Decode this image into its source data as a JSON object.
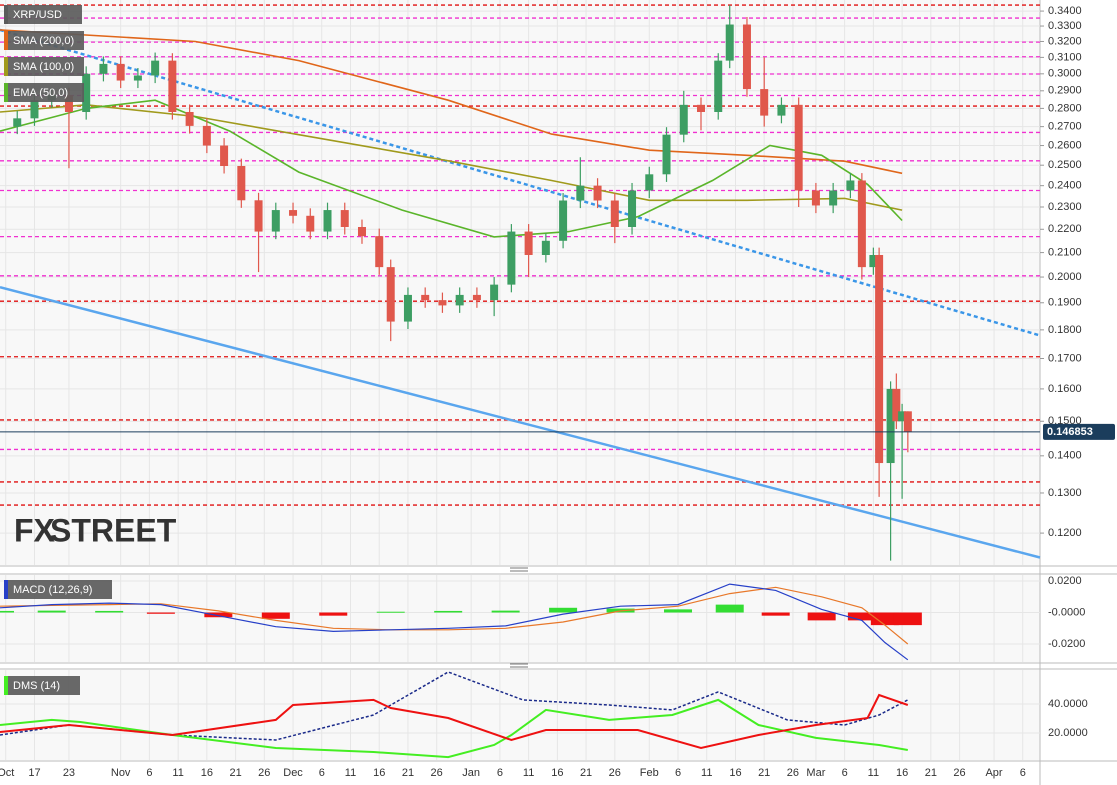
{
  "chart_data": [
    {
      "type": "candlestick",
      "title": "XRP/USD",
      "log_scale": true,
      "grid": true,
      "up_color": "#3d9e63",
      "down_color": "#e0584c",
      "xlim": [
        "Oct 11",
        "Apr 9"
      ],
      "xticks": [
        {
          "value": "Oct 12",
          "label": "Oct"
        },
        {
          "value": "Oct 17",
          "label": "17"
        },
        {
          "value": "Oct 23",
          "label": "23"
        },
        {
          "value": "Nov 1",
          "label": "Nov"
        },
        {
          "value": "Nov 6",
          "label": "6"
        },
        {
          "value": "Nov 11",
          "label": "11"
        },
        {
          "value": "Nov 16",
          "label": "16"
        },
        {
          "value": "Nov 21",
          "label": "21"
        },
        {
          "value": "Nov 26",
          "label": "26"
        },
        {
          "value": "Dec 1",
          "label": "Dec"
        },
        {
          "value": "Dec 6",
          "label": "6"
        },
        {
          "value": "Dec 11",
          "label": "11"
        },
        {
          "value": "Dec 16",
          "label": "16"
        },
        {
          "value": "Dec 21",
          "label": "21"
        },
        {
          "value": "Dec 26",
          "label": "26"
        },
        {
          "value": "Jan 1",
          "label": "Jan"
        },
        {
          "value": "Jan 6",
          "label": "6"
        },
        {
          "value": "Jan 11",
          "label": "11"
        },
        {
          "value": "Jan 16",
          "label": "16"
        },
        {
          "value": "Jan 21",
          "label": "21"
        },
        {
          "value": "Jan 26",
          "label": "26"
        },
        {
          "value": "Feb 1",
          "label": "Feb"
        },
        {
          "value": "Feb 6",
          "label": "6"
        },
        {
          "value": "Feb 11",
          "label": "11"
        },
        {
          "value": "Feb 16",
          "label": "16"
        },
        {
          "value": "Feb 21",
          "label": "21"
        },
        {
          "value": "Feb 26",
          "label": "26"
        },
        {
          "value": "Mar 1",
          "label": "Mar"
        },
        {
          "value": "Mar 6",
          "label": "6"
        },
        {
          "value": "Mar 11",
          "label": "11"
        },
        {
          "value": "Mar 16",
          "label": "16"
        },
        {
          "value": "Mar 21",
          "label": "21"
        },
        {
          "value": "Mar 26",
          "label": "26"
        },
        {
          "value": "Apr 1",
          "label": "Apr"
        },
        {
          "value": "Apr 6",
          "label": "6"
        }
      ],
      "ylim": [
        0.1126,
        0.3476
      ],
      "yticks": [
        {
          "value": 0.34,
          "label": "0.3400"
        },
        {
          "value": 0.33,
          "label": "0.3300"
        },
        {
          "value": 0.32,
          "label": "0.3200"
        },
        {
          "value": 0.31,
          "label": "0.3100"
        },
        {
          "value": 0.3,
          "label": "0.3000"
        },
        {
          "value": 0.29,
          "label": "0.2900"
        },
        {
          "value": 0.28,
          "label": "0.2800"
        },
        {
          "value": 0.27,
          "label": "0.2700"
        },
        {
          "value": 0.26,
          "label": "0.2600"
        },
        {
          "value": 0.25,
          "label": "0.2500"
        },
        {
          "value": 0.24,
          "label": "0.2400"
        },
        {
          "value": 0.23,
          "label": "0.2300"
        },
        {
          "value": 0.22,
          "label": "0.2200"
        },
        {
          "value": 0.21,
          "label": "0.2100"
        },
        {
          "value": 0.2,
          "label": "0.2000"
        },
        {
          "value": 0.19,
          "label": "0.1900"
        },
        {
          "value": 0.18,
          "label": "0.1800"
        },
        {
          "value": 0.17,
          "label": "0.1700"
        },
        {
          "value": 0.16,
          "label": "0.1600"
        },
        {
          "value": 0.15,
          "label": "0.1500"
        },
        {
          "value": 0.14,
          "label": "0.1400"
        },
        {
          "value": 0.13,
          "label": "0.1300"
        },
        {
          "value": 0.12,
          "label": "0.1200"
        }
      ],
      "x": [
        "Oct 14",
        "Oct 17",
        "Oct 20",
        "Oct 23",
        "Oct 26",
        "Oct 29",
        "Nov 1",
        "Nov 4",
        "Nov 7",
        "Nov 10",
        "Nov 13",
        "Nov 16",
        "Nov 19",
        "Nov 22",
        "Nov 25",
        "Nov 28",
        "Dec 1",
        "Dec 4",
        "Dec 7",
        "Dec 10",
        "Dec 13",
        "Dec 16",
        "Dec 18",
        "Dec 21",
        "Dec 24",
        "Dec 27",
        "Dec 30",
        "Jan 2",
        "Jan 5",
        "Jan 8",
        "Jan 11",
        "Jan 14",
        "Jan 17",
        "Jan 20",
        "Jan 23",
        "Jan 26",
        "Jan 29",
        "Feb 1",
        "Feb 4",
        "Feb 7",
        "Feb 10",
        "Feb 13",
        "Feb 15",
        "Feb 18",
        "Feb 21",
        "Feb 24",
        "Feb 27",
        "Mar 1",
        "Mar 4",
        "Mar 7",
        "Mar 9",
        "Mar 11",
        "Mar 12",
        "Mar 14",
        "Mar 15",
        "Mar 16",
        "Mar 17"
      ],
      "open": [
        0.27,
        0.2745,
        0.2846,
        0.2875,
        0.278,
        0.3,
        0.306,
        0.296,
        0.299,
        0.308,
        0.278,
        0.2704,
        0.26,
        0.2496,
        0.2331,
        0.219,
        0.2286,
        0.226,
        0.219,
        0.2286,
        0.221,
        0.217,
        0.204,
        0.183,
        0.193,
        0.191,
        0.189,
        0.193,
        0.191,
        0.197,
        0.219,
        0.209,
        0.215,
        0.233,
        0.24,
        0.233,
        0.221,
        0.2377,
        0.2455,
        0.2657,
        0.282,
        0.278,
        0.308,
        0.331,
        0.291,
        0.276,
        0.282,
        0.2377,
        0.2307,
        0.2377,
        0.2425,
        0.204,
        0.209,
        0.138,
        0.16,
        0.15,
        0.153
      ],
      "high": [
        0.2786,
        0.2889,
        0.2918,
        0.2918,
        0.3045,
        0.3106,
        0.3106,
        0.3035,
        0.313,
        0.3126,
        0.2822,
        0.2745,
        0.2639,
        0.2533,
        0.2366,
        0.232,
        0.232,
        0.2294,
        0.232,
        0.232,
        0.2243,
        0.2203,
        0.2071,
        0.1959,
        0.1959,
        0.1939,
        0.1959,
        0.1959,
        0.2,
        0.2223,
        0.2223,
        0.2182,
        0.2365,
        0.254,
        0.2436,
        0.2365,
        0.2413,
        0.2492,
        0.2697,
        0.29,
        0.2862,
        0.3126,
        0.344,
        0.336,
        0.31,
        0.2862,
        0.2862,
        0.2413,
        0.2413,
        0.2461,
        0.2461,
        0.2121,
        0.2121,
        0.1624,
        0.165,
        0.1553,
        0.153
      ],
      "low": [
        0.266,
        0.2704,
        0.2803,
        0.2485,
        0.2738,
        0.2955,
        0.2916,
        0.2916,
        0.2945,
        0.2738,
        0.2663,
        0.2561,
        0.2459,
        0.2296,
        0.202,
        0.2157,
        0.2226,
        0.2157,
        0.2157,
        0.2177,
        0.2137,
        0.2009,
        0.176,
        0.1803,
        0.1881,
        0.1862,
        0.1862,
        0.1881,
        0.185,
        0.194,
        0.2,
        0.2059,
        0.2118,
        0.2295,
        0.2295,
        0.214,
        0.2177,
        0.2341,
        0.2418,
        0.2617,
        0.268,
        0.2738,
        0.3034,
        0.2866,
        0.27,
        0.2718,
        0.23,
        0.2272,
        0.2272,
        0.2341,
        0.199,
        0.2009,
        0.129,
        0.1136,
        0.1477,
        0.1285,
        0.141
      ],
      "close": [
        0.2745,
        0.2846,
        0.2875,
        0.278,
        0.3,
        0.306,
        0.296,
        0.299,
        0.308,
        0.278,
        0.2704,
        0.26,
        0.2496,
        0.2331,
        0.219,
        0.2286,
        0.226,
        0.219,
        0.2286,
        0.221,
        0.217,
        0.204,
        0.183,
        0.193,
        0.191,
        0.189,
        0.193,
        0.191,
        0.197,
        0.219,
        0.209,
        0.215,
        0.233,
        0.24,
        0.233,
        0.221,
        0.2377,
        0.2455,
        0.2657,
        0.282,
        0.278,
        0.308,
        0.331,
        0.291,
        0.276,
        0.282,
        0.2377,
        0.2307,
        0.2377,
        0.2425,
        0.204,
        0.209,
        0.138,
        0.16,
        0.15,
        0.153,
        0.1469
      ],
      "overlays": [
        {
          "name": "SMA (200,0)",
          "color": "#e0661a",
          "x": [
            "Oct 11",
            "Nov 14",
            "Dec 2",
            "Dec 28",
            "Jan 15",
            "Feb 1",
            "Feb 18",
            "Mar 6",
            "Mar 16"
          ],
          "values": [
            0.3275,
            0.32,
            0.308,
            0.2846,
            0.266,
            0.2576,
            0.255,
            0.252,
            0.246
          ]
        },
        {
          "name": "SMA (100,0)",
          "color": "#a09a1c",
          "x": [
            "Oct 11",
            "Oct 26",
            "Nov 14",
            "Dec 2",
            "Dec 28",
            "Jan 15",
            "Feb 1",
            "Feb 18",
            "Mar 6",
            "Mar 16"
          ],
          "values": [
            0.278,
            0.282,
            0.2755,
            0.2657,
            0.2522,
            0.2425,
            0.2331,
            0.2331,
            0.234,
            0.2286
          ]
        },
        {
          "name": "EMA (50,0)",
          "color": "#5ab52a",
          "x": [
            "Oct 11",
            "Oct 26",
            "Nov 7",
            "Nov 20",
            "Dec 2",
            "Dec 20",
            "Jan 5",
            "Jan 18",
            "Jan 30",
            "Feb 12",
            "Feb 22",
            "Mar 2",
            "Mar 10",
            "Mar 16"
          ],
          "values": [
            0.2676,
            0.28,
            0.2846,
            0.2676,
            0.2466,
            0.2286,
            0.2167,
            0.219,
            0.2256,
            0.2425,
            0.26,
            0.255,
            0.2406,
            0.2239
          ]
        }
      ],
      "trendlines": [
        {
          "color": "#3a96e8",
          "dashed": true,
          "x": [
            "Oct 11",
            "Apr 9"
          ],
          "values": [
            0.3275,
            0.178
          ]
        },
        {
          "color": "#5aa6ee",
          "dashed": false,
          "x": [
            "Oct 11",
            "Apr 9"
          ],
          "values": [
            0.196,
            0.1143
          ]
        }
      ],
      "levels": [
        {
          "value": 0.3441,
          "color": "#e01010"
        },
        {
          "value": 0.3353,
          "color": "#f030d0"
        },
        {
          "value": 0.3196,
          "color": "#f030d0"
        },
        {
          "value": 0.3104,
          "color": "#f030d0"
        },
        {
          "value": 0.2999,
          "color": "#f030d0"
        },
        {
          "value": 0.2873,
          "color": "#f030d0"
        },
        {
          "value": 0.2813,
          "color": "#e01010"
        },
        {
          "value": 0.2669,
          "color": "#f030d0"
        },
        {
          "value": 0.2522,
          "color": "#f030d0"
        },
        {
          "value": 0.2377,
          "color": "#f030d0"
        },
        {
          "value": 0.2168,
          "color": "#f030d0"
        },
        {
          "value": 0.2005,
          "color": "#f030d0"
        },
        {
          "value": 0.1906,
          "color": "#e01010"
        },
        {
          "value": 0.1706,
          "color": "#e01010"
        },
        {
          "value": 0.1504,
          "color": "#e01010"
        },
        {
          "value": 0.1418,
          "color": "#f030d0"
        },
        {
          "value": 0.1329,
          "color": "#e01010"
        },
        {
          "value": 0.1269,
          "color": "#e01010"
        }
      ],
      "last_price": 0.146853,
      "last_price_color": "#1b3d5c",
      "watermark": [
        "FX",
        "STREET"
      ]
    },
    {
      "type": "macd",
      "title": "MACD (12,26,9)",
      "ylim": [
        -0.0314,
        0.0238
      ],
      "yticks": [
        {
          "value": 0.02,
          "label": "0.0200"
        },
        {
          "value": 0,
          "label": "-0.0000"
        },
        {
          "value": -0.02,
          "label": "-0.0200"
        }
      ],
      "x": [
        "Oct 11",
        "Oct 20",
        "Oct 30",
        "Nov 8",
        "Nov 18",
        "Nov 28",
        "Dec 8",
        "Dec 18",
        "Dec 28",
        "Jan 7",
        "Jan 17",
        "Jan 27",
        "Feb 6",
        "Feb 15",
        "Feb 23",
        "Mar 2",
        "Mar 9",
        "Mar 13",
        "Mar 17"
      ],
      "macd": {
        "color": "#2740c8",
        "values": [
          0.003,
          0.005,
          0.006,
          0.005,
          -0.002,
          -0.009,
          -0.012,
          -0.011,
          -0.01,
          -0.0085,
          -0.001,
          0.004,
          0.005,
          0.018,
          0.014,
          0.002,
          -0.005,
          -0.019,
          -0.03
        ]
      },
      "signal": {
        "color": "#e8782a",
        "values": [
          0.004,
          0.0045,
          0.005,
          0.0055,
          0.001,
          -0.005,
          -0.01,
          -0.011,
          -0.011,
          -0.01,
          -0.006,
          0.001,
          0.004,
          0.012,
          0.016,
          0.01,
          0.003,
          -0.008,
          -0.02
        ]
      },
      "histogram": {
        "up_color": "#33dd33",
        "down_color": "#ee1111",
        "values": [
          0.001,
          0.0012,
          0.001,
          -0.0008,
          -0.003,
          -0.004,
          -0.002,
          0.0005,
          0.001,
          0.0012,
          0.003,
          0.0025,
          0.002,
          0.005,
          -0.002,
          -0.005,
          -0.005,
          -0.008,
          -0.008
        ]
      }
    },
    {
      "type": "line",
      "title": "DMS (14)",
      "ylim": [
        1.4,
        63.4
      ],
      "yticks": [
        {
          "value": 40,
          "label": "40.0000"
        },
        {
          "value": 20,
          "label": "20.0000"
        }
      ],
      "series": [
        {
          "color": "#1a2a8a",
          "dashed": true,
          "x": [
            "Oct 11",
            "Oct 23",
            "Nov 10",
            "Nov 28",
            "Dec 15",
            "Dec 28",
            "Jan 10",
            "Jan 25",
            "Feb 5",
            "Feb 13",
            "Feb 25",
            "Mar 6",
            "Mar 12",
            "Mar 17"
          ],
          "values": [
            18.6,
            25.5,
            18.6,
            15.2,
            32.4,
            62.0,
            42.8,
            39.3,
            35.9,
            48.3,
            29.0,
            25.5,
            32.4,
            42.8
          ]
        },
        {
          "color": "#44ee22",
          "dashed": false,
          "x": [
            "Oct 11",
            "Oct 20",
            "Oct 25",
            "Nov 10",
            "Nov 28",
            "Dec 15",
            "Dec 28",
            "Jan 5",
            "Jan 8",
            "Jan 14",
            "Jan 25",
            "Feb 5",
            "Feb 13",
            "Feb 20",
            "Mar 1",
            "Mar 12",
            "Mar 17"
          ],
          "values": [
            25.5,
            29.0,
            27.6,
            18.6,
            9.7,
            6.9,
            3.4,
            11.7,
            18.6,
            35.9,
            29.0,
            32.4,
            42.8,
            25.5,
            16.6,
            11.7,
            8.3
          ]
        },
        {
          "color": "#ee1111",
          "dashed": false,
          "x": [
            "Oct 11",
            "Oct 23",
            "Nov 10",
            "Nov 28",
            "Dec 1",
            "Dec 15",
            "Dec 18",
            "Dec 28",
            "Jan 8",
            "Jan 14",
            "Jan 30",
            "Feb 10",
            "Feb 20",
            "Mar 1",
            "Mar 10",
            "Mar 12",
            "Mar 17"
          ],
          "values": [
            20.7,
            25.5,
            18.6,
            29.0,
            39.3,
            42.8,
            37.2,
            30.3,
            15.2,
            22.1,
            22.1,
            9.7,
            18.6,
            25.5,
            30.3,
            46.2,
            39.3
          ]
        }
      ]
    }
  ]
}
